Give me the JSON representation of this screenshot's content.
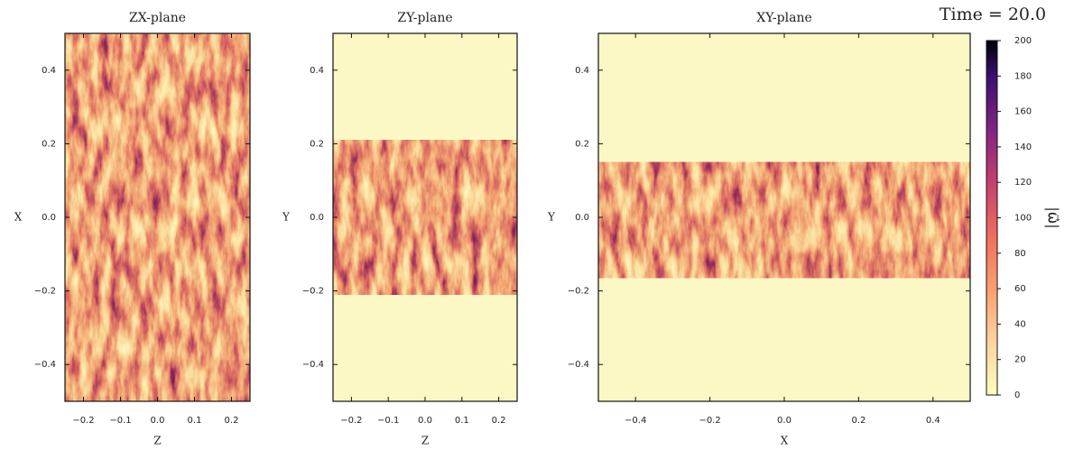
{
  "chart_data": [
    {
      "type": "heatmap",
      "title": "ZX-plane",
      "x_label": "Z",
      "y_label": "X",
      "xlim": [
        -0.25,
        0.25
      ],
      "ylim": [
        -0.5,
        0.5
      ],
      "xticks": [
        {
          "value": -0.2,
          "label": "−0.2"
        },
        {
          "value": -0.1,
          "label": "−0.1"
        },
        {
          "value": 0,
          "label": "0.0"
        },
        0.1,
        0.2
      ],
      "yticks": [
        {
          "value": -0.4,
          "label": "−0.4"
        },
        {
          "value": -0.2,
          "label": "−0.2"
        },
        {
          "value": 0,
          "label": "0.0"
        },
        0.2,
        0.4
      ]
    },
    {
      "type": "heatmap",
      "title": "ZY-plane",
      "x_label": "Z",
      "y_label": "Y",
      "xlim": [
        -0.25,
        0.25
      ],
      "ylim": [
        -0.5,
        0.5
      ],
      "xticks": [
        {
          "value": -0.2,
          "label": "−0.2"
        },
        {
          "value": -0.1,
          "label": "−0.1"
        },
        {
          "value": 0,
          "label": "0.0"
        },
        0.1,
        0.2
      ],
      "yticks": [
        {
          "value": -0.4,
          "label": "−0.4"
        },
        {
          "value": -0.2,
          "label": "−0.2"
        },
        {
          "value": 0,
          "label": "0.0"
        },
        0.2,
        0.4
      ]
    },
    {
      "type": "heatmap",
      "title": "XY-plane",
      "x_label": "X",
      "y_label": "Y",
      "xlim": [
        -0.5,
        0.5
      ],
      "ylim": [
        -0.5,
        0.5
      ],
      "xticks": [
        {
          "value": -0.4,
          "label": "−0.4"
        },
        {
          "value": -0.2,
          "label": "−0.2"
        },
        {
          "value": 0,
          "label": "0.0"
        },
        0.2,
        0.4
      ],
      "yticks": [
        {
          "value": -0.4,
          "label": "−0.4"
        },
        {
          "value": -0.2,
          "label": "−0.2"
        },
        {
          "value": 0,
          "label": "0.0"
        },
        0.2,
        0.4
      ]
    }
  ],
  "colorbar": {
    "label": "|ω⃗|",
    "lim": [
      0,
      200
    ],
    "ticks": [
      0,
      20,
      40,
      60,
      80,
      100,
      120,
      140,
      160,
      180,
      200
    ]
  },
  "annotation": "Time = 20.0"
}
